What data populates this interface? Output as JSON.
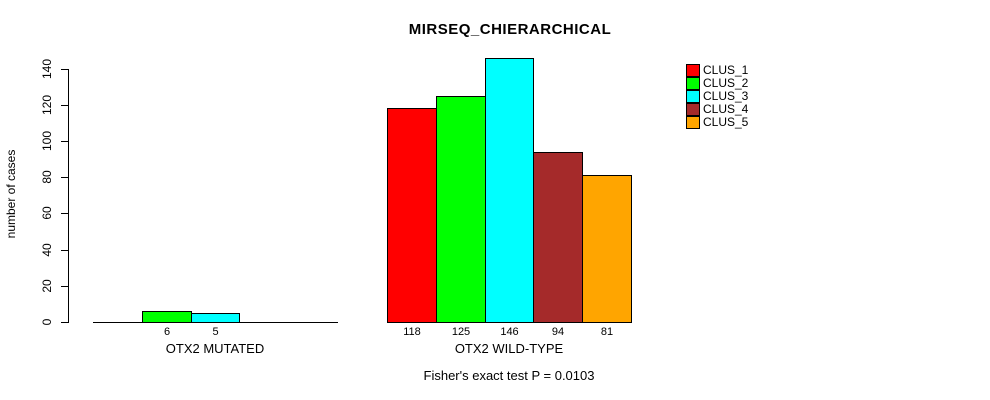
{
  "chart_data": {
    "type": "bar",
    "title": "MIRSEQ_CHIERARCHICAL",
    "ylabel": "number of cases",
    "xlabel": "",
    "footnote": "Fisher's exact test P = 0.0103",
    "ylim": [
      0,
      140
    ],
    "yticks": [
      0,
      20,
      40,
      60,
      80,
      100,
      120,
      140
    ],
    "grid": false,
    "legend_position": "top-right",
    "categories": [
      "OTX2 MUTATED",
      "OTX2 WILD-TYPE"
    ],
    "series": [
      {
        "name": "CLUS_1",
        "color": "#FF0000",
        "values": [
          0,
          118
        ]
      },
      {
        "name": "CLUS_2",
        "color": "#00FF00",
        "values": [
          6,
          125
        ]
      },
      {
        "name": "CLUS_3",
        "color": "#00FFFF",
        "values": [
          5,
          146
        ]
      },
      {
        "name": "CLUS_4",
        "color": "#A52A2A",
        "values": [
          0,
          94
        ]
      },
      {
        "name": "CLUS_5",
        "color": "#FFA500",
        "values": [
          0,
          81
        ]
      }
    ],
    "bar_value_labels_shown_for_nonzero_bars": true
  }
}
